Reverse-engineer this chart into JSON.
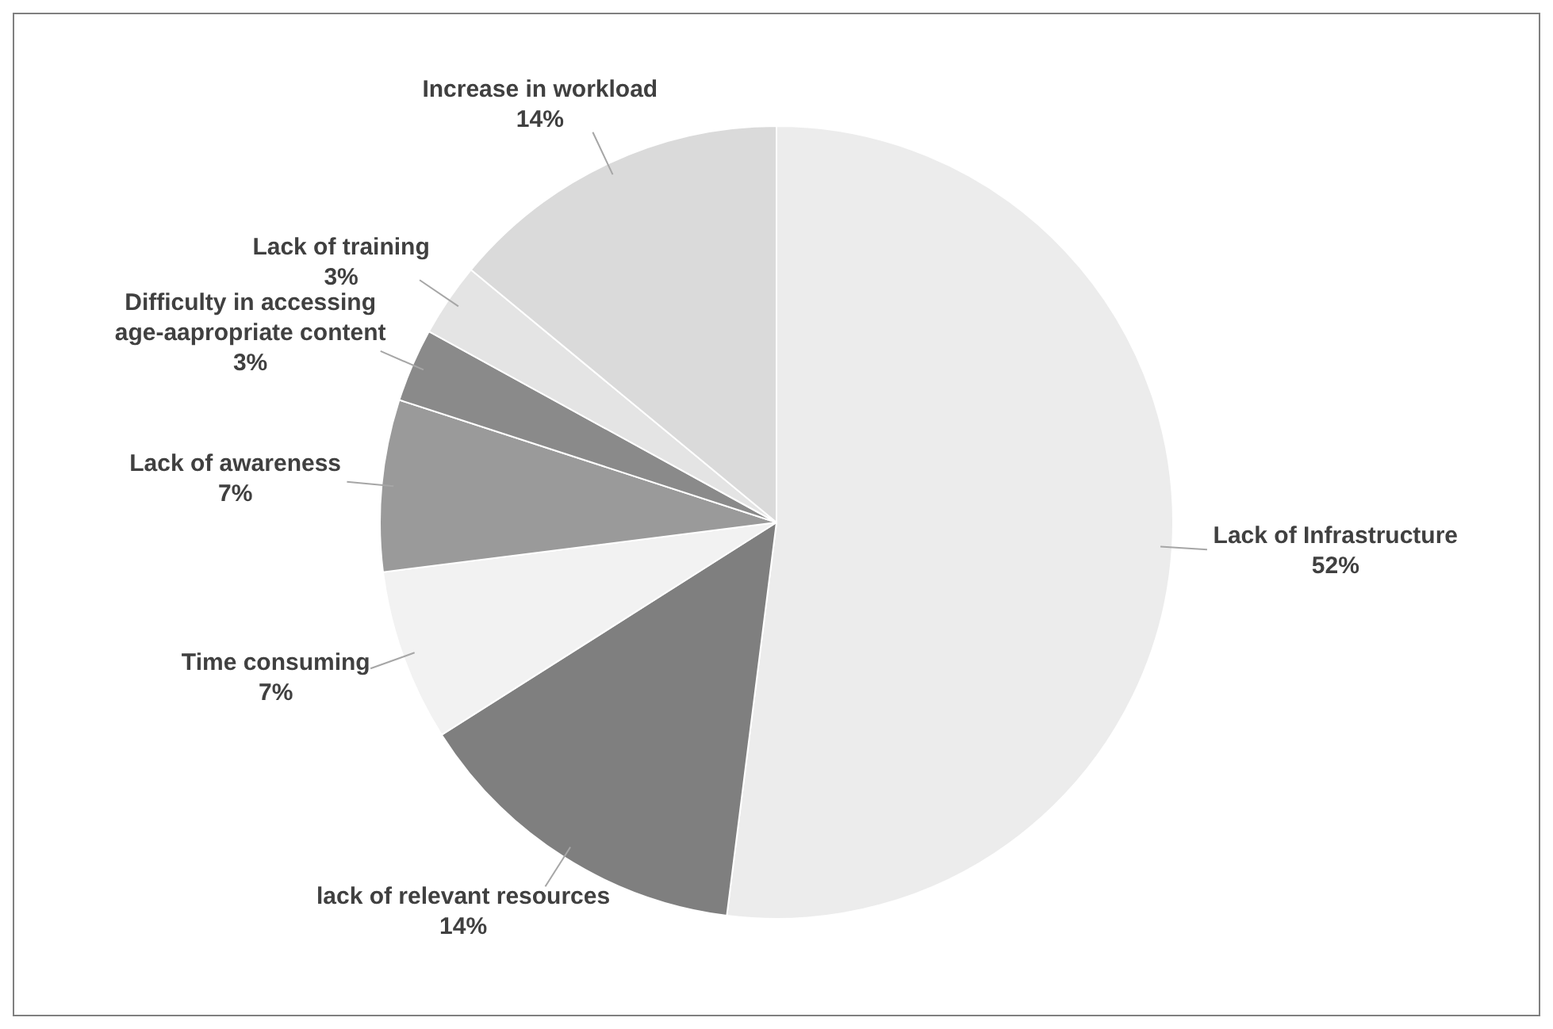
{
  "chart_data": {
    "type": "pie",
    "categories": [
      "Lack of Infrastructure",
      "lack of relevant resources",
      "Time consuming",
      "Lack of awareness",
      "Difficulty in accessing age-aapropriate content",
      "Lack of training",
      "Increase in workload"
    ],
    "values": [
      52,
      14,
      7,
      7,
      3,
      3,
      14
    ],
    "value_labels": [
      "52%",
      "14%",
      "7%",
      "7%",
      "3%",
      "3%",
      "14%"
    ],
    "colors": [
      "#ececec",
      "#7f7f7f",
      "#f2f2f2",
      "#9a9a9a",
      "#8a8a8a",
      "#e4e4e4",
      "#dadada"
    ],
    "legend": false
  }
}
